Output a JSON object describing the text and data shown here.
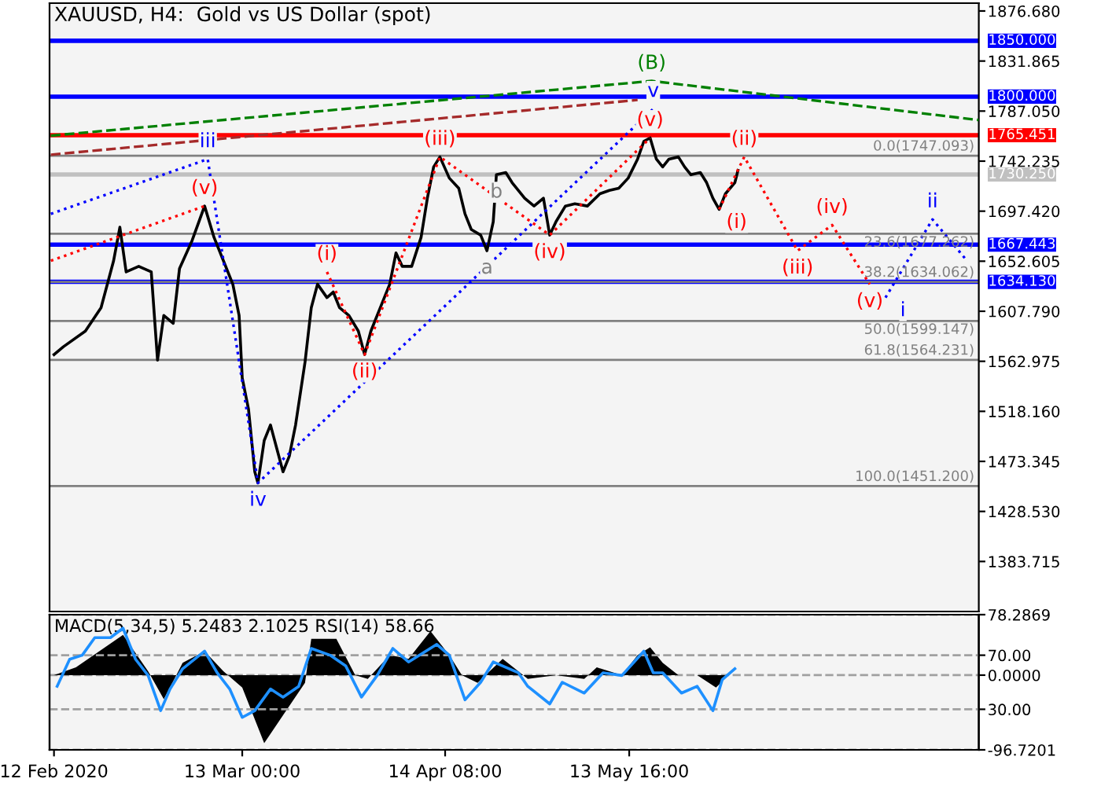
{
  "chart_data": [
    {
      "type": "line",
      "title": "XAUUSD, H4:  Gold vs US Dollar (spot)",
      "xlim": [
        "2020-02-11T07:00",
        "2020-07-08T09:00"
      ],
      "ylim": [
        1338.9,
        1883.7
      ],
      "tick_labels": "y",
      "grid": false,
      "legend": false,
      "yticks": [
        {
          "value": 1876.68,
          "label": "1876.680"
        },
        {
          "value": 1831.865,
          "label": "1831.865"
        },
        {
          "value": 1787.05,
          "label": "1787.050"
        },
        {
          "value": 1742.235,
          "label": "1742.235"
        },
        {
          "value": 1697.42,
          "label": "1697.420"
        },
        {
          "value": 1652.605,
          "label": "1652.605"
        },
        {
          "value": 1607.79,
          "label": "1607.790"
        },
        {
          "value": 1562.975,
          "label": "1562.975"
        },
        {
          "value": 1518.16,
          "label": "1518.160"
        },
        {
          "value": 1473.345,
          "label": "1473.345"
        },
        {
          "value": 1428.53,
          "label": "1428.530"
        },
        {
          "value": 1383.715,
          "label": "1383.715"
        }
      ],
      "series": [
        {
          "color": "#000000",
          "line_style": "solid",
          "x": [
            "2020-02-12T00:00",
            "2020-02-13T12:00",
            "2020-02-17T00:00",
            "2020-02-19T12:00",
            "2020-02-21T12:00",
            "2020-02-22T12:00",
            "2020-02-23T12:00",
            "2020-02-25T12:00",
            "2020-02-27T12:00",
            "2020-02-28T12:00",
            "2020-02-29T12:00",
            "2020-03-02T00:00",
            "2020-03-03T00:00",
            "2020-03-05T00:00",
            "2020-03-07T00:00",
            "2020-03-08T12:00",
            "2020-03-10T00:00",
            "2020-03-11T12:00",
            "2020-03-12T12:00",
            "2020-03-13T00:00",
            "2020-03-14T00:00",
            "2020-03-15T00:00",
            "2020-03-15T12:00",
            "2020-03-16T12:00",
            "2020-03-17T12:00",
            "2020-03-18T12:00",
            "2020-03-19T12:00",
            "2020-03-20T12:00",
            "2020-03-21T12:00",
            "2020-03-23T00:00",
            "2020-03-24T00:00",
            "2020-03-25T00:00",
            "2020-03-26T12:00",
            "2020-03-27T12:00",
            "2020-03-28T12:00",
            "2020-03-30T00:00",
            "2020-03-31T12:00",
            "2020-04-01T12:00",
            "2020-04-02T12:00",
            "2020-04-04T00:00",
            "2020-04-05T12:00",
            "2020-04-06T12:00",
            "2020-04-07T12:00",
            "2020-04-09T00:00",
            "2020-04-10T12:00",
            "2020-04-11T12:00",
            "2020-04-12T12:00",
            "2020-04-13T12:00",
            "2020-04-15T00:00",
            "2020-04-16T12:00",
            "2020-04-17T12:00",
            "2020-04-18T12:00",
            "2020-04-20T00:00",
            "2020-04-21T00:00",
            "2020-04-22T00:00",
            "2020-04-22T12:00",
            "2020-04-24T00:00",
            "2020-04-25T00:00",
            "2020-04-27T00:00",
            "2020-04-28T12:00",
            "2020-04-30T00:00",
            "2020-05-01T00:00",
            "2020-05-02T00:00",
            "2020-05-03T12:00",
            "2020-05-05T00:00",
            "2020-05-07T00:00",
            "2020-05-09T00:00",
            "2020-05-10T12:00",
            "2020-05-12T00:00",
            "2020-05-13T12:00",
            "2020-05-15T00:00",
            "2020-05-16T00:00",
            "2020-05-17T00:00",
            "2020-05-18T00:00",
            "2020-05-19T00:00",
            "2020-05-20T00:00",
            "2020-05-21T12:00",
            "2020-05-22T12:00",
            "2020-05-23T12:00",
            "2020-05-25T00:00",
            "2020-05-26T00:00",
            "2020-05-27T00:00",
            "2020-05-28T00:00",
            "2020-05-29T00:00",
            "2020-05-30T12:00",
            "2020-05-31T00:00"
          ],
          "values": [
            1569,
            1576,
            1590,
            1611,
            1653,
            1683,
            1643,
            1648,
            1643,
            1564,
            1604,
            1597,
            1646,
            1671,
            1702,
            1674,
            1653,
            1632,
            1604,
            1548,
            1520,
            1464,
            1454,
            1492,
            1506,
            1485,
            1464,
            1478,
            1506,
            1562,
            1611,
            1632,
            1620,
            1625,
            1611,
            1604,
            1590,
            1569,
            1590,
            1611,
            1632,
            1660,
            1648,
            1648,
            1674,
            1709,
            1737,
            1746,
            1727,
            1718,
            1695,
            1681,
            1676,
            1662,
            1688,
            1730,
            1732,
            1723,
            1709,
            1702,
            1709,
            1676,
            1688,
            1702,
            1704,
            1702,
            1713,
            1716,
            1718,
            1727,
            1744,
            1760,
            1763,
            1744,
            1737,
            1744,
            1746,
            1737,
            1730,
            1732,
            1723,
            1709,
            1699,
            1713,
            1723,
            1734
          ]
        },
        {
          "color": "#ff0000",
          "line_style": "dotted",
          "x": [
            "2020-02-11T12:00",
            "2020-03-07T00:00"
          ],
          "values": [
            1653,
            1702
          ]
        },
        {
          "color": "#0000ff",
          "line_style": "dotted",
          "x": [
            "2020-02-11T12:00",
            "2020-03-07T12:00",
            "2020-03-15T12:00",
            "2020-05-17T12:00"
          ],
          "values": [
            1695,
            1744,
            1454,
            1789
          ]
        },
        {
          "color": "#ff0000",
          "line_style": "dotted",
          "x": [
            "2020-03-26T12:00",
            "2020-04-01T12:00",
            "2020-04-13T12:00",
            "2020-05-01T00:00",
            "2020-05-17T00:00"
          ],
          "values": [
            1643,
            1569,
            1746,
            1676,
            1763
          ]
        },
        {
          "color": "#008000",
          "line_style": "dashed",
          "x": [
            "2020-02-11T12:00",
            "2020-05-17T06:00",
            "2020-07-08T09:00"
          ],
          "values": [
            1765,
            1814,
            1779
          ]
        },
        {
          "color": "#a52a2a",
          "line_style": "dashed",
          "x": [
            "2020-02-11T12:00",
            "2020-05-15T00:00"
          ],
          "values": [
            1748,
            1797
          ]
        },
        {
          "color": "#ff0000",
          "line_style": "dotted",
          "x": [
            "2020-05-28T00:00",
            "2020-06-01T00:00",
            "2020-06-09T12:00",
            "2020-06-15T00:00",
            "2020-06-21T00:00"
          ],
          "values": [
            1699,
            1746,
            1662,
            1685,
            1632
          ]
        },
        {
          "color": "#0000ff",
          "line_style": "dotted",
          "x": [
            "2020-06-23T12:00",
            "2020-07-01T00:00",
            "2020-07-06T12:00"
          ],
          "values": [
            1620,
            1690,
            1653
          ]
        }
      ],
      "ref_lines": [
        {
          "axis": "y",
          "value": 1850.0,
          "label": "1850.000",
          "color": "#0000ff"
        },
        {
          "axis": "y",
          "value": 1800.0,
          "label": "1800.000",
          "color": "#0000ff"
        },
        {
          "axis": "y",
          "value": 1765.451,
          "label": "1765.451",
          "color": "#ff0000"
        },
        {
          "axis": "y",
          "value": 1730.25,
          "label": "1730.250",
          "color": "#c0c0c0"
        },
        {
          "axis": "y",
          "value": 1667.443,
          "label": "1667.443",
          "color": "#0000ff"
        },
        {
          "axis": "y",
          "value": 1634.13,
          "label": "1634.130",
          "color": "#0000ff"
        },
        {
          "axis": "y",
          "value": 1747.093,
          "label": "0.0(1747.093)",
          "color": "#808080",
          "line_style": "solid"
        },
        {
          "axis": "y",
          "value": 1677.262,
          "label": "23.6(1677.262)",
          "color": "#808080",
          "line_style": "solid"
        },
        {
          "axis": "y",
          "value": 1634.062,
          "label": "38.2(1634.062)",
          "color": "#808080",
          "line_style": "solid"
        },
        {
          "axis": "y",
          "value": 1599.147,
          "label": "50.0(1599.147)",
          "color": "#808080",
          "line_style": "solid"
        },
        {
          "axis": "y",
          "value": 1564.231,
          "label": "61.8(1564.231)",
          "color": "#808080",
          "line_style": "solid"
        },
        {
          "axis": "y",
          "value": 1451.2,
          "label": "100.0(1451.200)",
          "color": "#808080",
          "line_style": "solid"
        }
      ],
      "annotations": [
        {
          "text": "(v)",
          "x": "2020-03-07T00:00",
          "y": 1702
        },
        {
          "text": "iii",
          "x": "2020-03-07T12:00",
          "y": 1744
        },
        {
          "text": "iv",
          "x": "2020-03-15T12:00",
          "y": 1454
        },
        {
          "text": "(i)",
          "x": "2020-03-26T12:00",
          "y": 1643
        },
        {
          "text": "(ii)",
          "x": "2020-04-01T12:00",
          "y": 1569
        },
        {
          "text": "(iii)",
          "x": "2020-04-13T12:00",
          "y": 1746
        },
        {
          "text": "a",
          "x": "2020-04-21T00:00",
          "y": 1662
        },
        {
          "text": "b",
          "x": "2020-04-22T12:00",
          "y": 1730
        },
        {
          "text": "(iv)",
          "x": "2020-05-01T00:00",
          "y": 1676
        },
        {
          "text": "(v)",
          "x": "2020-05-17T00:00",
          "y": 1763
        },
        {
          "text": "v",
          "x": "2020-05-17T12:00",
          "y": 1789
        },
        {
          "text": "(B)",
          "x": "2020-05-17T06:00",
          "y": 1814
        },
        {
          "text": "(i)",
          "x": "2020-05-28T00:00",
          "y": 1699
        },
        {
          "text": "(ii)",
          "x": "2020-06-01T00:00",
          "y": 1746
        },
        {
          "text": "(iii)",
          "x": "2020-06-09T12:00",
          "y": 1662
        },
        {
          "text": "(iv)",
          "x": "2020-06-15T00:00",
          "y": 1685
        },
        {
          "text": "(v)",
          "x": "2020-06-21T00:00",
          "y": 1632
        },
        {
          "text": "i",
          "x": "2020-06-23T12:00",
          "y": 1620
        },
        {
          "text": "ii",
          "x": "2020-07-01T00:00",
          "y": 1690
        }
      ]
    },
    {
      "type": "area",
      "title": "MACD(5,34,5) 5.2483 2.1025 RSI(14) 58.66",
      "xlim": [
        "2020-02-11T07:00",
        "2020-07-08T09:00"
      ],
      "ylim": [
        -96.7201,
        78.2869
      ],
      "y2lim": [
        0,
        100
      ],
      "grid": "y",
      "legend": false,
      "xticks": [
        {
          "value": "2020-02-12T00:00",
          "label": "12 Feb 2020"
        },
        {
          "value": "2020-03-13T00:00",
          "label": "13 Mar 00:00"
        },
        {
          "value": "2020-04-14T08:00",
          "label": "14 Apr 08:00"
        },
        {
          "value": "2020-05-13T16:00",
          "label": "13 May 16:00"
        }
      ],
      "yticks": [
        {
          "value": 78.2869,
          "label": "78.2869"
        },
        {
          "value": 0,
          "label": "0.0000"
        },
        {
          "value": -96.7201,
          "label": "-96.7201"
        }
      ],
      "y2ticks": [
        {
          "value": 70,
          "label": "70.00"
        },
        {
          "value": 30,
          "label": "30.00"
        }
      ],
      "series": [
        {
          "color": "#000000",
          "x": [
            "2020-02-12T00:00",
            "2020-02-15T12:00",
            "2020-02-23T00:00",
            "2020-02-27T00:00",
            "2020-02-29T12:00",
            "2020-03-02T12:00",
            "2020-03-03T12:00",
            "2020-03-07T00:00",
            "2020-03-10T00:00",
            "2020-03-13T00:00",
            "2020-03-16T12:00",
            "2020-03-19T12:00",
            "2020-03-23T00:00",
            "2020-03-24T00:00",
            "2020-03-28T00:00",
            "2020-03-31T00:00",
            "2020-04-02T00:00",
            "2020-04-05T12:00",
            "2020-04-08T12:00",
            "2020-04-12T00:00",
            "2020-04-15T00:00",
            "2020-04-17T00:00",
            "2020-04-19T12:00",
            "2020-04-23T12:00",
            "2020-04-26T00:00",
            "2020-04-27T12:00",
            "2020-05-02T00:00",
            "2020-05-06T12:00",
            "2020-05-08T12:00",
            "2020-05-12T12:00",
            "2020-05-15T00:00",
            "2020-05-17T00:00",
            "2020-05-19T00:00",
            "2020-05-21T12:00",
            "2020-05-24T12:00",
            "2020-05-27T12:00",
            "2020-05-29T12:00"
          ],
          "values": [
            0,
            10,
            52,
            5,
            -31,
            0,
            16,
            31,
            5,
            -16,
            -88,
            -52,
            -10,
            47,
            47,
            0,
            -5,
            26,
            21,
            57,
            26,
            0,
            -10,
            21,
            5,
            -5,
            0,
            -5,
            10,
            0,
            26,
            36,
            16,
            0,
            0,
            -16,
            0
          ]
        },
        {
          "type": "line",
          "axis": "y2",
          "color": "#1e90ff",
          "line_style": "solid",
          "x": [
            "2020-02-12T12:00",
            "2020-02-14T12:00",
            "2020-02-16T12:00",
            "2020-02-18T12:00",
            "2020-02-21T00:00",
            "2020-02-23T00:00",
            "2020-02-25T00:00",
            "2020-02-27T00:00",
            "2020-02-29T00:00",
            "2020-03-01T12:00",
            "2020-03-03T12:00",
            "2020-03-07T00:00",
            "2020-03-09T00:00",
            "2020-03-11T00:00",
            "2020-03-13T00:00",
            "2020-03-15T00:00",
            "2020-03-17T12:00",
            "2020-03-19T12:00",
            "2020-03-22T00:00",
            "2020-03-24T00:00",
            "2020-03-27T00:00",
            "2020-03-29T12:00",
            "2020-04-01T00:00",
            "2020-04-03T12:00",
            "2020-04-06T00:00",
            "2020-04-08T12:00",
            "2020-04-13T00:00",
            "2020-04-15T00:00",
            "2020-04-17T12:00",
            "2020-04-20T00:00",
            "2020-04-22T00:00",
            "2020-04-26T00:00",
            "2020-04-27T12:00",
            "2020-05-01T00:00",
            "2020-05-03T00:00",
            "2020-05-06T12:00",
            "2020-05-09T12:00",
            "2020-05-12T12:00",
            "2020-05-16T00:00",
            "2020-05-17T12:00",
            "2020-05-19T00:00",
            "2020-05-22T00:00",
            "2020-05-24T12:00",
            "2020-05-27T00:00",
            "2020-05-28T12:00",
            "2020-05-30T12:00"
          ],
          "values": [
            47,
            67,
            70,
            83,
            83,
            90,
            67,
            55,
            29,
            45,
            60,
            73,
            57,
            45,
            24,
            29,
            45,
            39,
            47,
            75,
            70,
            62,
            39,
            55,
            75,
            65,
            78,
            70,
            37,
            50,
            65,
            57,
            47,
            34,
            50,
            42,
            57,
            55,
            73,
            57,
            57,
            42,
            47,
            29,
            52,
            60
          ]
        }
      ]
    }
  ]
}
